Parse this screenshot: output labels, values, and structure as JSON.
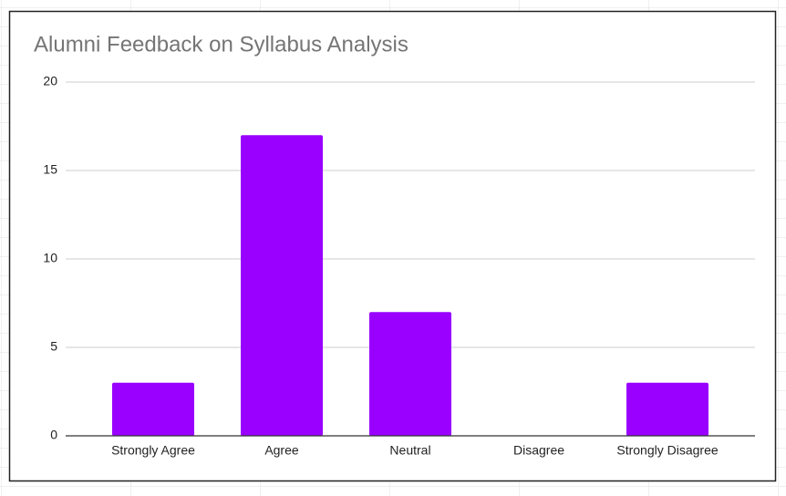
{
  "chart_data": {
    "type": "bar",
    "title": "Alumni Feedback on Syllabus Analysis",
    "categories": [
      "Strongly Agree",
      "Agree",
      "Neutral",
      "Disagree",
      "Strongly Disagree"
    ],
    "values": [
      3,
      17,
      7,
      0,
      3
    ],
    "color": "#9900ff",
    "ylim": [
      0,
      20
    ],
    "yticks": [
      0,
      5,
      10,
      15,
      20
    ],
    "grid": true
  }
}
